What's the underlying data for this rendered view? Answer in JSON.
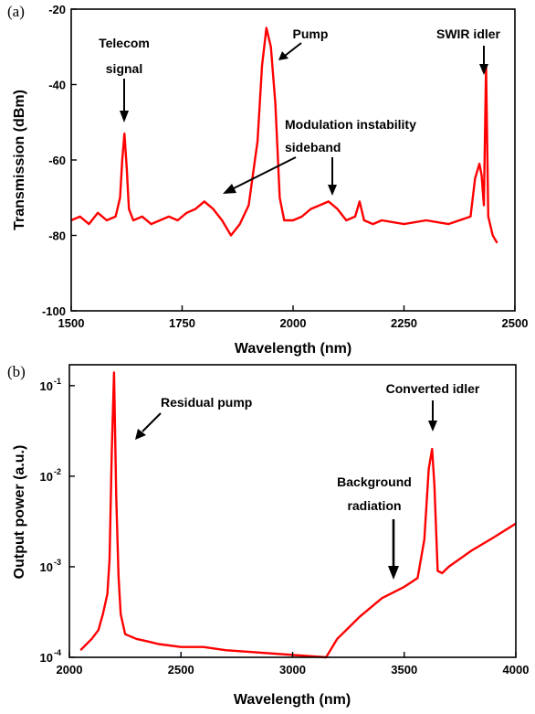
{
  "chart_data": [
    {
      "type": "line",
      "panel_label": "(a)",
      "xlabel": "Wavelength (nm)",
      "ylabel": "Transmission (dBm)",
      "xlim": [
        1500,
        2500
      ],
      "ylim": [
        -100,
        -20
      ],
      "x_ticks": [
        1500,
        1750,
        2000,
        2250,
        2500
      ],
      "x_tick_labels": [
        "1500",
        "1750",
        "2000",
        "2250",
        "2500"
      ],
      "y_ticks": [
        -100,
        -80,
        -60,
        -40,
        -20
      ],
      "y_tick_labels": [
        "-100",
        "-80",
        "-60",
        "-40",
        "-20"
      ],
      "grid": false,
      "series": [
        {
          "color": "#ff0000",
          "x": [
            1500,
            1520,
            1540,
            1560,
            1580,
            1600,
            1610,
            1615,
            1620,
            1625,
            1630,
            1640,
            1660,
            1680,
            1700,
            1720,
            1740,
            1760,
            1780,
            1800,
            1820,
            1840,
            1860,
            1880,
            1900,
            1920,
            1930,
            1940,
            1950,
            1960,
            1970,
            1980,
            2000,
            2020,
            2040,
            2060,
            2080,
            2100,
            2120,
            2140,
            2150,
            2160,
            2180,
            2200,
            2250,
            2300,
            2350,
            2400,
            2410,
            2420,
            2425,
            2430,
            2435,
            2440,
            2450,
            2460
          ],
          "y": [
            -76,
            -75,
            -77,
            -74,
            -76,
            -75,
            -70,
            -60,
            -53,
            -62,
            -73,
            -76,
            -75,
            -77,
            -76,
            -75,
            -76,
            -74,
            -73,
            -71,
            -73,
            -76,
            -80,
            -77,
            -72,
            -55,
            -35,
            -25,
            -30,
            -45,
            -70,
            -76,
            -76,
            -75,
            -73,
            -72,
            -71,
            -73,
            -76,
            -75,
            -71,
            -76,
            -77,
            -76,
            -77,
            -76,
            -77,
            -75,
            -65,
            -61,
            -64,
            -72,
            -35,
            -75,
            -80,
            -82
          ]
        }
      ],
      "annotations": [
        {
          "lines": [
            "Telecom",
            "signal"
          ],
          "points_to": [
            1620,
            -53
          ]
        },
        {
          "lines": [
            "Pump"
          ],
          "points_to": [
            1950,
            -30
          ]
        },
        {
          "lines": [
            "SWIR idler"
          ],
          "points_to": [
            2435,
            -36
          ]
        },
        {
          "lines": [
            "Modulation instability",
            "sideband"
          ],
          "points_to": [
            1800,
            -72
          ]
        }
      ]
    },
    {
      "type": "line",
      "panel_label": "(b)",
      "xlabel": "Wavelength (nm)",
      "ylabel": "Output power (a.u.)",
      "xlim": [
        2000,
        4000
      ],
      "ylim": [
        0.0001,
        0.17
      ],
      "y_scale": "log",
      "x_ticks": [
        2000,
        2500,
        3000,
        3500,
        4000
      ],
      "x_tick_labels": [
        "2000",
        "2500",
        "3000",
        "3500",
        "4000"
      ],
      "y_ticks": [
        0.0001,
        0.001,
        0.01,
        0.1
      ],
      "y_tick_labels": [
        {
          "base": "10",
          "exp": "-4"
        },
        {
          "base": "10",
          "exp": "-3"
        },
        {
          "base": "10",
          "exp": "-2"
        },
        {
          "base": "10",
          "exp": "-1"
        }
      ],
      "grid": false,
      "series": [
        {
          "color": "#ff0000",
          "x": [
            2050,
            2100,
            2130,
            2150,
            2170,
            2180,
            2190,
            2200,
            2210,
            2220,
            2230,
            2250,
            2300,
            2350,
            2400,
            2500,
            2600,
            2700,
            3150,
            3200,
            3300,
            3400,
            3500,
            3560,
            3590,
            3610,
            3625,
            3635,
            3650,
            3670,
            3700,
            3800,
            3900,
            4000
          ],
          "y": [
            0.00012,
            0.00016,
            0.0002,
            0.0003,
            0.0005,
            0.0012,
            0.02,
            0.14,
            0.006,
            0.0008,
            0.0003,
            0.00018,
            0.00016,
            0.00015,
            0.00014,
            0.00013,
            0.00013,
            0.00012,
            0.0001,
            0.00016,
            0.00028,
            0.00045,
            0.0006,
            0.00075,
            0.002,
            0.012,
            0.02,
            0.008,
            0.0009,
            0.00085,
            0.001,
            0.0015,
            0.0021,
            0.003
          ]
        }
      ],
      "annotations": [
        {
          "lines": [
            "Residual pump"
          ],
          "points_to": [
            2250,
            0.025
          ]
        },
        {
          "lines": [
            "Converted idler"
          ],
          "points_to": [
            3625,
            0.024
          ]
        },
        {
          "lines": [
            "Background",
            "radiation"
          ],
          "points_to": [
            3440,
            0.00065
          ]
        }
      ]
    }
  ]
}
